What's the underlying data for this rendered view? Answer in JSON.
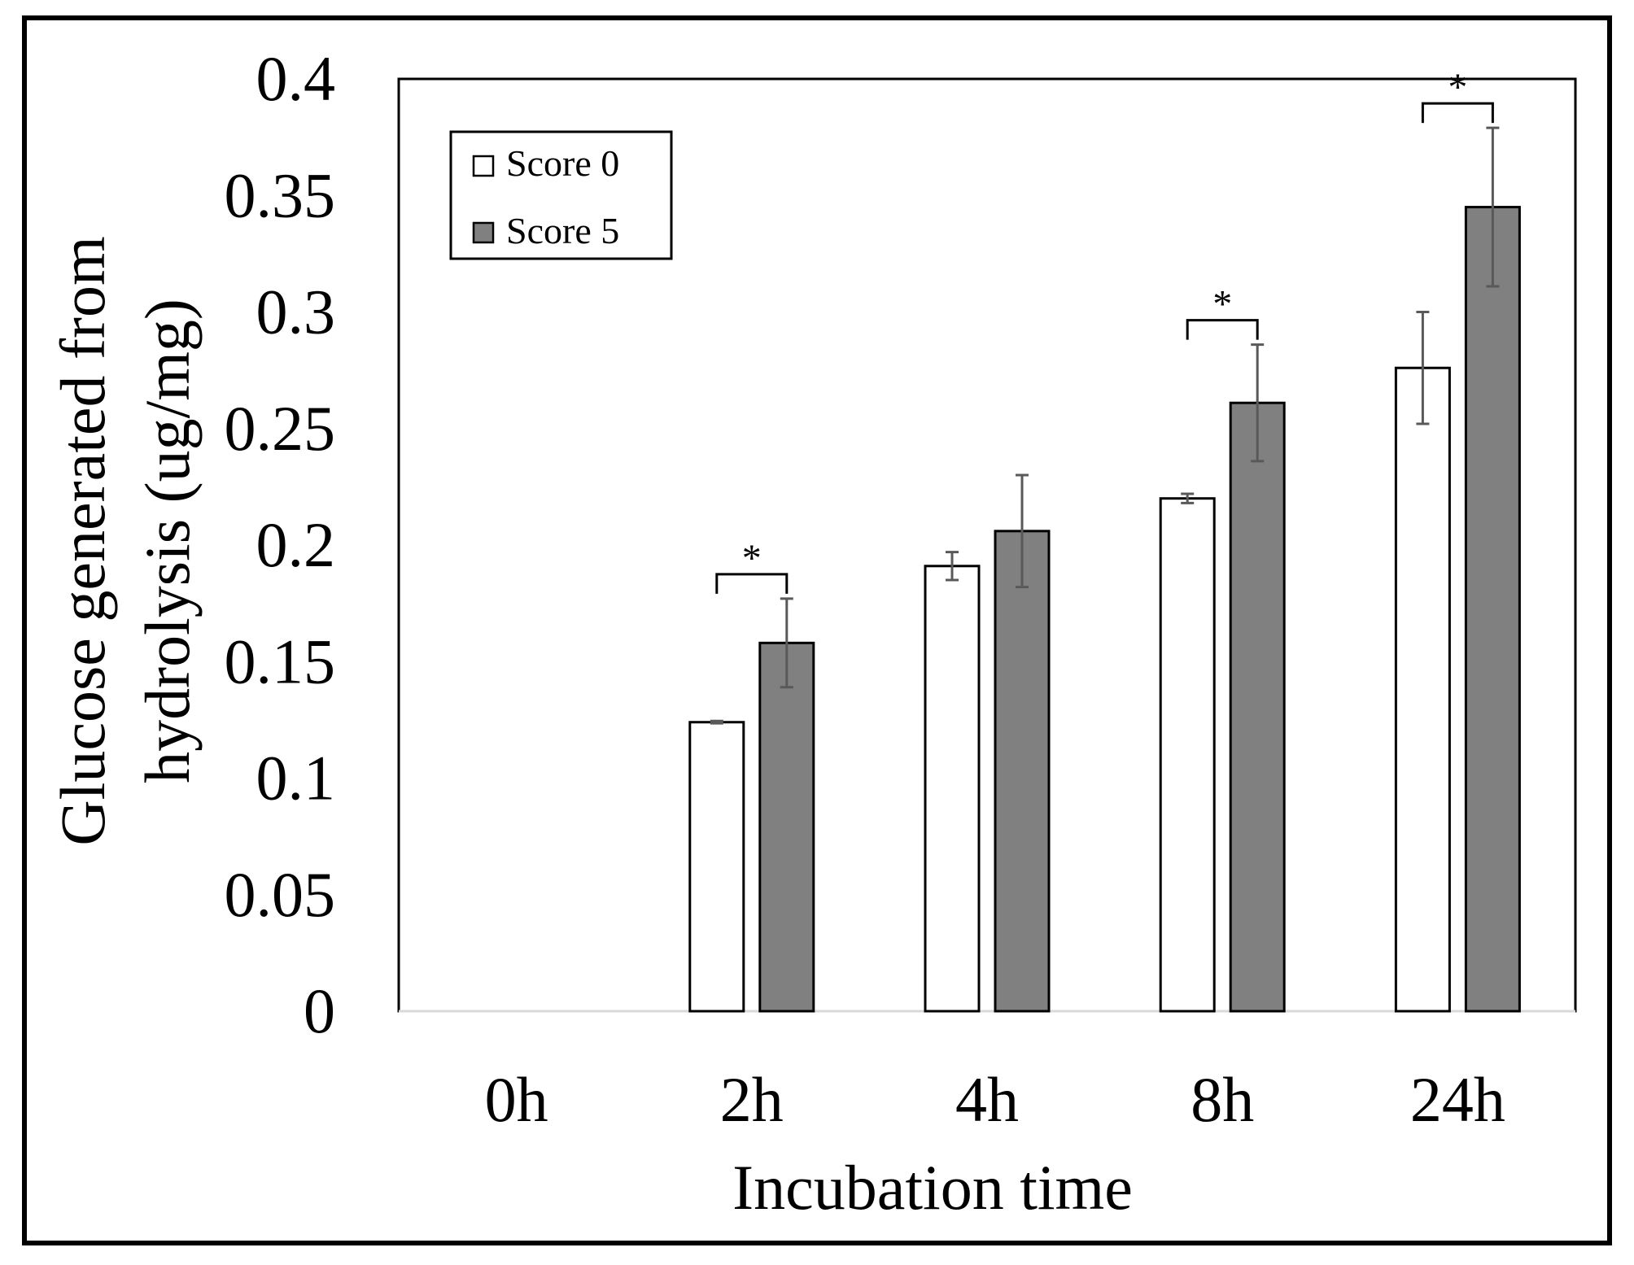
{
  "chart_data": {
    "type": "bar",
    "title": "",
    "xlabel": "Incubation time",
    "ylabel_lines": [
      "Glucose generated from",
      "hydrolysis (ug/mg)"
    ],
    "categories": [
      "0h",
      "2h",
      "4h",
      "8h",
      "24h"
    ],
    "ylim": [
      0,
      0.4
    ],
    "yticks": [
      "0",
      "0.05",
      "0.1",
      "0.15",
      "0.2",
      "0.25",
      "0.3",
      "0.35",
      "0.4"
    ],
    "grid": false,
    "legend_position": "top-left",
    "series": [
      {
        "name": "Score 0",
        "color": "#ffffff",
        "values": [
          0,
          0.124,
          0.191,
          0.22,
          0.276
        ],
        "errors": [
          0,
          0.0005,
          0.006,
          0.002,
          0.024
        ]
      },
      {
        "name": "Score 5",
        "color": "#808080",
        "values": [
          0,
          0.158,
          0.206,
          0.261,
          0.345
        ],
        "errors": [
          0,
          0.019,
          0.024,
          0.025,
          0.034
        ]
      }
    ],
    "significance": [
      {
        "category": "2h",
        "label": "*"
      },
      {
        "category": "8h",
        "label": "*"
      },
      {
        "category": "24h",
        "label": "*"
      }
    ]
  }
}
